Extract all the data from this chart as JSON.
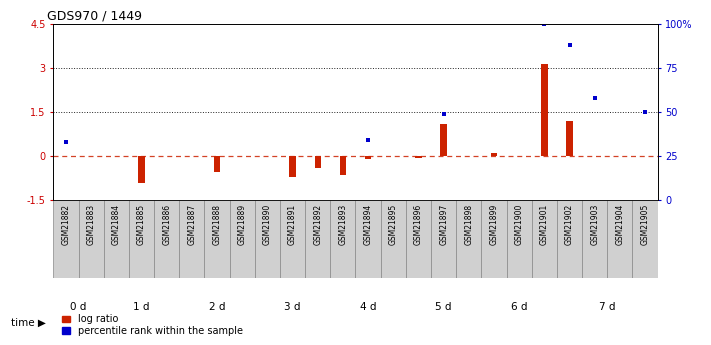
{
  "title": "GDS970 / 1449",
  "samples": [
    "GSM21882",
    "GSM21883",
    "GSM21884",
    "GSM21885",
    "GSM21886",
    "GSM21887",
    "GSM21888",
    "GSM21889",
    "GSM21890",
    "GSM21891",
    "GSM21892",
    "GSM21893",
    "GSM21894",
    "GSM21895",
    "GSM21896",
    "GSM21897",
    "GSM21898",
    "GSM21899",
    "GSM21900",
    "GSM21901",
    "GSM21902",
    "GSM21903",
    "GSM21904",
    "GSM21905"
  ],
  "log_ratio": [
    0.0,
    0.0,
    0.0,
    -0.9,
    0.0,
    0.0,
    -0.55,
    0.0,
    0.0,
    -0.7,
    -0.4,
    -0.65,
    -0.1,
    0.0,
    -0.05,
    1.1,
    0.0,
    0.1,
    0.0,
    3.15,
    1.2,
    0.0,
    0.0,
    0.0
  ],
  "percentile_rank_pct": [
    33.0,
    0.0,
    0.0,
    0.0,
    0.0,
    0.0,
    0.0,
    0.0,
    0.0,
    0.0,
    0.0,
    0.0,
    34.0,
    0.0,
    0.0,
    49.0,
    0.0,
    0.0,
    0.0,
    100.0,
    88.0,
    58.0,
    0.0,
    50.0
  ],
  "time_groups": [
    {
      "label": "0 d",
      "start": 0,
      "end": 2,
      "color": "#c8c8c8"
    },
    {
      "label": "1 d",
      "start": 2,
      "end": 5,
      "color": "#90e090"
    },
    {
      "label": "2 d",
      "start": 5,
      "end": 8,
      "color": "#c8c8c8"
    },
    {
      "label": "3 d",
      "start": 8,
      "end": 11,
      "color": "#90e090"
    },
    {
      "label": "4 d",
      "start": 11,
      "end": 14,
      "color": "#c8c8c8"
    },
    {
      "label": "5 d",
      "start": 14,
      "end": 17,
      "color": "#90e090"
    },
    {
      "label": "6 d",
      "start": 17,
      "end": 20,
      "color": "#c8c8c8"
    },
    {
      "label": "7 d",
      "start": 20,
      "end": 24,
      "color": "#90e090"
    }
  ],
  "ylim_left": [
    -1.5,
    4.5
  ],
  "ylim_right": [
    0,
    100
  ],
  "yticks_left": [
    -1.5,
    0.0,
    1.5,
    3.0,
    4.5
  ],
  "ytick_labels_left": [
    "-1.5",
    "0",
    "1.5",
    "3",
    "4.5"
  ],
  "yticks_right": [
    0,
    25,
    50,
    75,
    100
  ],
  "ytick_labels_right": [
    "0",
    "25",
    "50",
    "75",
    "100%"
  ],
  "bar_color_red": "#cc2200",
  "bar_color_blue": "#0000cc",
  "hline_color": "#cc2200",
  "dotted_line_color": "#222222",
  "label_bg_color": "#d0d0d0",
  "label_border_color": "#888888"
}
